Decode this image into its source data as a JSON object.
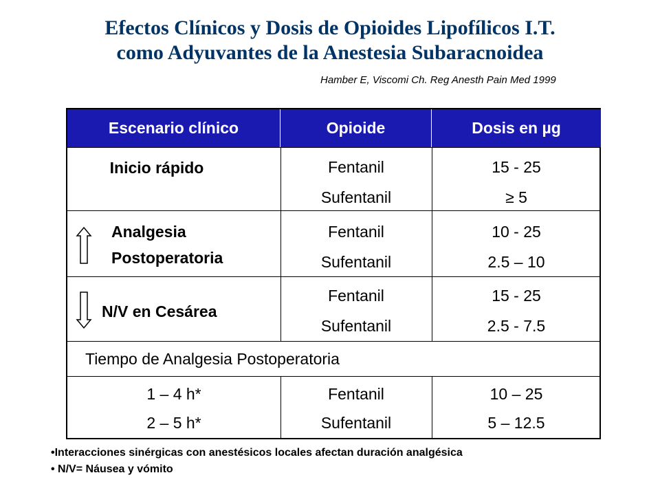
{
  "title": {
    "line1": "Efectos Clínicos y Dosis de Opioides Lipofílicos I.T.",
    "line2": "como Adyuvantes de la Anestesia Subaracnoidea"
  },
  "citation": "Hamber E, Viscomi Ch. Reg Anesth Pain Med 1999",
  "table": {
    "headers": [
      "Escenario clínico",
      "Opioide",
      "Dosis en µg"
    ],
    "rows": [
      {
        "scenario": [
          "Inicio rápido"
        ],
        "opioids": [
          "Fentanil",
          "Sufentanil"
        ],
        "doses": [
          "15 - 25",
          "≥ 5"
        ]
      },
      {
        "scenario": [
          "Analgesia",
          "Postoperatoria"
        ],
        "opioids": [
          "Fentanil",
          "Sufentanil"
        ],
        "doses": [
          "10 - 25",
          "2.5 – 10"
        ],
        "arrow": "up-arrow-icon"
      },
      {
        "scenario": [
          "N/V en Cesárea"
        ],
        "opioids": [
          "Fentanil",
          "Sufentanil"
        ],
        "doses": [
          "15 - 25",
          "2.5 - 7.5"
        ],
        "arrow": "down-arrow-icon"
      }
    ],
    "section_title": "Tiempo de Analgesia Postoperatoria",
    "last_row": {
      "times": [
        "1 – 4 h*",
        "2 – 5 h*"
      ],
      "opioids": [
        "Fentanil",
        "Sufentanil"
      ],
      "doses": [
        "10 – 25",
        "5 – 12.5"
      ]
    }
  },
  "notes": [
    "•Interacciones sinérgicas con anestésicos locales afectan duración analgésica",
    "• N/V= Náusea y vómito"
  ],
  "colors": {
    "title": "#003366",
    "header_bg": "#1a1ab0",
    "header_text": "#ffffff"
  }
}
